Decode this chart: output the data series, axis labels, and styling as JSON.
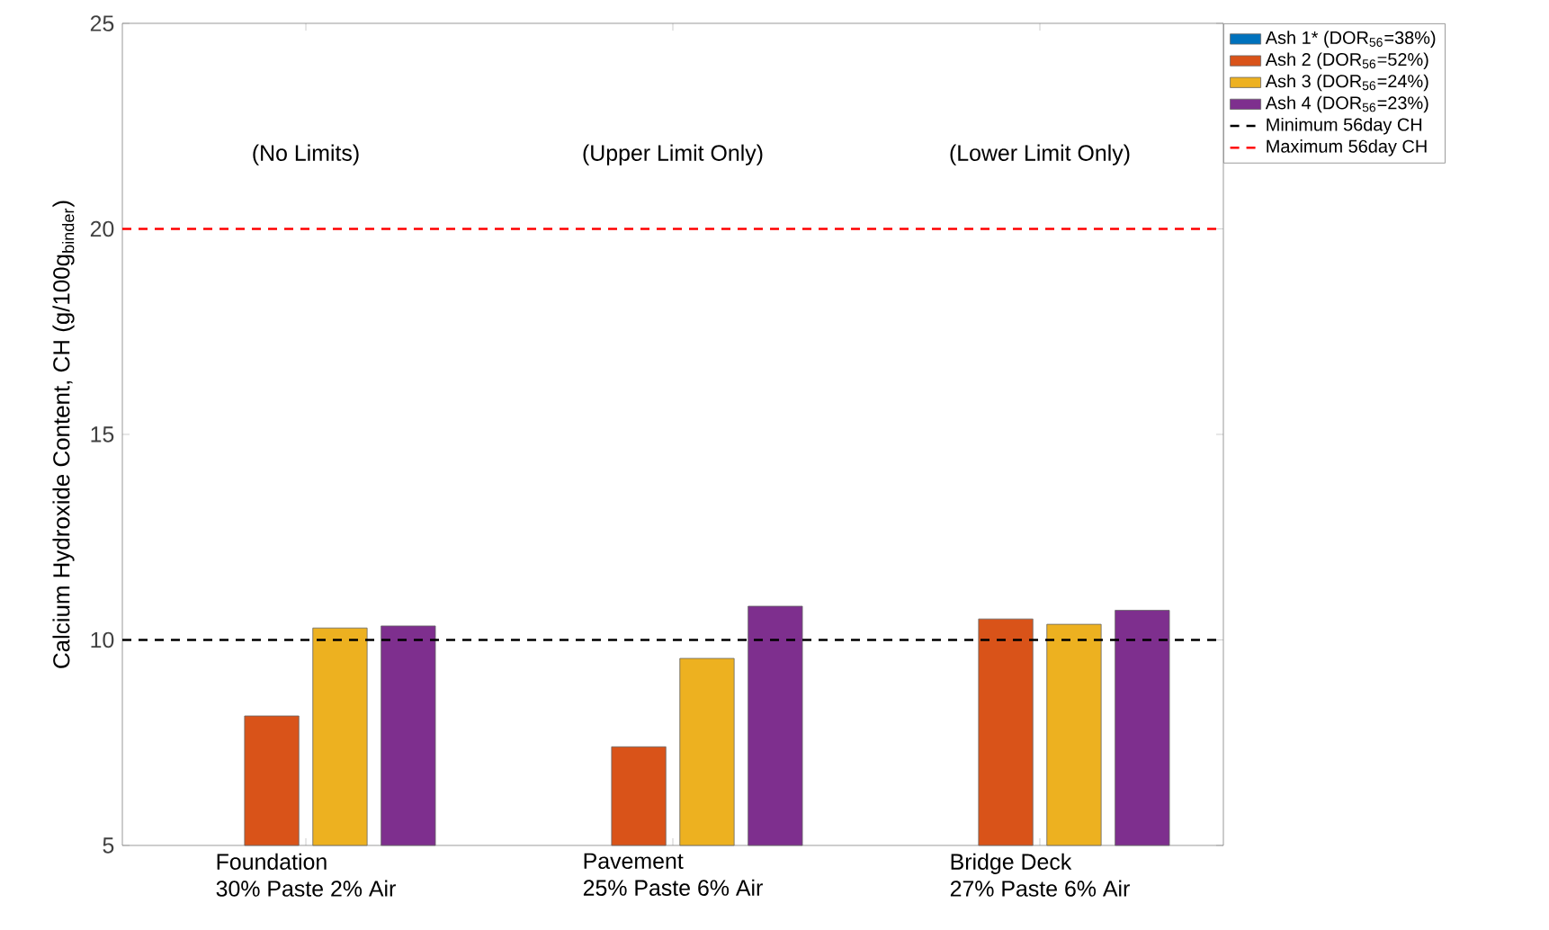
{
  "chart_data": {
    "type": "bar",
    "ylabel": "Calcium Hydroxide Content, CH (g/100g$_{binder}$)",
    "categories": [
      "Foundation\n30% Paste 2% Air",
      "Pavement\n25% Paste 6% Air",
      "Bridge Deck\n27% Paste 6% Air"
    ],
    "series": [
      {
        "name": "Ash 1* (DOR$_{56}$=38%)",
        "color": "#0072bd",
        "values": [
          null,
          null,
          null
        ]
      },
      {
        "name": "Ash 2 (DOR$_{56}$=52%)",
        "color": "#d95319",
        "values": [
          8.15,
          7.4,
          10.51
        ]
      },
      {
        "name": "Ash 3 (DOR$_{56}$=24%)",
        "color": "#edb120",
        "values": [
          10.29,
          9.55,
          10.38
        ]
      },
      {
        "name": "Ash 4 (DOR$_{56}$=23%)",
        "color": "#7e2f8e",
        "values": [
          10.34,
          10.82,
          10.72
        ]
      }
    ],
    "ref_lines": [
      {
        "axis": "y",
        "value": 10,
        "label": "Minimum 56day CH",
        "color": "#000000",
        "line_style": "dashed"
      },
      {
        "axis": "y",
        "value": 20,
        "label": "Maximum 56day CH",
        "color": "#ff0000",
        "line_style": "dashed"
      }
    ],
    "ylim": [
      5,
      25
    ],
    "yticks": [
      5,
      10,
      15,
      20,
      25
    ],
    "annotations": [
      "(No Limits)",
      "(Upper Limit Only)",
      "(Lower Limit Only)"
    ],
    "grid": false,
    "legend": "right"
  }
}
